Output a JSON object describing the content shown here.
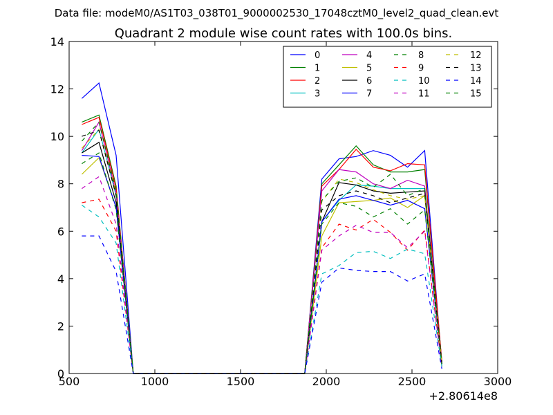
{
  "figure": {
    "suptitle": "Data file: modeM0/AS1T03_038T01_9000002530_17048cztM0_level2_quad_clean.evt",
    "x_offset_label": "+2.80614e8"
  },
  "chart_data": {
    "type": "line",
    "title": "Quadrant 2 module wise count rates with 100.0s bins.",
    "xlabel": "",
    "ylabel": "",
    "xlim": [
      500,
      3000
    ],
    "ylim": [
      0,
      14
    ],
    "x_ticks": [
      "500",
      "1000",
      "1500",
      "2000",
      "2500",
      "3000"
    ],
    "y_ticks": [
      "0",
      "2",
      "4",
      "6",
      "8",
      "10",
      "12",
      "14"
    ],
    "grid": false,
    "legend_position": "top-right",
    "legend_columns": 4,
    "x": [
      574,
      674,
      774,
      874,
      974,
      1074,
      1174,
      1274,
      1374,
      1474,
      1574,
      1674,
      1774,
      1874,
      1974,
      2074,
      2174,
      2274,
      2374,
      2474,
      2574,
      2674
    ],
    "series": [
      {
        "name": "0",
        "color": "#0000ff",
        "dash": false,
        "values": [
          11.6,
          12.25,
          9.2,
          0,
          0,
          0,
          0,
          0,
          0,
          0,
          0,
          0,
          0,
          0,
          8.2,
          9.05,
          9.15,
          9.4,
          9.2,
          8.7,
          9.4,
          0.4
        ]
      },
      {
        "name": "1",
        "color": "#008000",
        "dash": false,
        "values": [
          10.6,
          10.9,
          7.9,
          0,
          0,
          0,
          0,
          0,
          0,
          0,
          0,
          0,
          0,
          0,
          8.0,
          8.8,
          9.6,
          8.8,
          8.5,
          8.5,
          8.6,
          0.5
        ]
      },
      {
        "name": "2",
        "color": "#ff0000",
        "dash": false,
        "values": [
          10.5,
          10.8,
          7.8,
          0,
          0,
          0,
          0,
          0,
          0,
          0,
          0,
          0,
          0,
          0,
          7.9,
          8.6,
          9.45,
          8.7,
          8.55,
          8.85,
          8.8,
          0.5
        ]
      },
      {
        "name": "3",
        "color": "#00bfbf",
        "dash": false,
        "values": [
          9.3,
          10.3,
          7.5,
          0,
          0,
          0,
          0,
          0,
          0,
          0,
          0,
          0,
          0,
          0,
          6.4,
          7.3,
          7.95,
          7.9,
          7.8,
          7.8,
          7.8,
          0.4
        ]
      },
      {
        "name": "4",
        "color": "#bf00bf",
        "dash": false,
        "values": [
          9.4,
          10.6,
          7.6,
          0,
          0,
          0,
          0,
          0,
          0,
          0,
          0,
          0,
          0,
          0,
          7.7,
          8.6,
          8.5,
          8.0,
          7.8,
          8.15,
          7.9,
          0.4
        ]
      },
      {
        "name": "5",
        "color": "#bfbf00",
        "dash": false,
        "values": [
          8.4,
          9.1,
          7.0,
          0,
          0,
          0,
          0,
          0,
          0,
          0,
          0,
          0,
          0,
          0,
          5.8,
          7.2,
          7.25,
          7.3,
          7.4,
          7.0,
          7.5,
          0.4
        ]
      },
      {
        "name": "6",
        "color": "#000000",
        "dash": false,
        "values": [
          9.3,
          9.75,
          7.2,
          0,
          0,
          0,
          0,
          0,
          0,
          0,
          0,
          0,
          0,
          0,
          6.4,
          8.05,
          7.95,
          7.7,
          7.6,
          7.65,
          7.7,
          0.4
        ]
      },
      {
        "name": "7",
        "color": "#0000ff",
        "dash": false,
        "values": [
          9.2,
          9.15,
          7.0,
          0,
          0,
          0,
          0,
          0,
          0,
          0,
          0,
          0,
          0,
          0,
          6.4,
          7.35,
          7.5,
          7.3,
          7.1,
          7.3,
          6.95,
          0.4
        ]
      },
      {
        "name": "8",
        "color": "#008000",
        "dash": true,
        "values": [
          8.85,
          9.3,
          6.9,
          0,
          0,
          0,
          0,
          0,
          0,
          0,
          0,
          0,
          0,
          0,
          6.3,
          7.2,
          7.05,
          6.6,
          6.95,
          6.3,
          6.9,
          0.4
        ]
      },
      {
        "name": "9",
        "color": "#ff0000",
        "dash": true,
        "values": [
          7.2,
          7.35,
          6.0,
          0,
          0,
          0,
          0,
          0,
          0,
          0,
          0,
          0,
          0,
          0,
          5.3,
          6.3,
          6.05,
          6.5,
          5.95,
          5.2,
          6.05,
          0.3
        ]
      },
      {
        "name": "10",
        "color": "#00bfbf",
        "dash": true,
        "values": [
          7.1,
          6.6,
          5.5,
          0,
          0,
          0,
          0,
          0,
          0,
          0,
          0,
          0,
          0,
          0,
          4.2,
          4.55,
          5.1,
          5.15,
          4.85,
          5.25,
          5.05,
          0.3
        ]
      },
      {
        "name": "11",
        "color": "#bf00bf",
        "dash": true,
        "values": [
          7.8,
          8.3,
          6.3,
          0,
          0,
          0,
          0,
          0,
          0,
          0,
          0,
          0,
          0,
          0,
          5.2,
          5.8,
          6.25,
          5.95,
          5.95,
          5.3,
          6.0,
          0.3
        ]
      },
      {
        "name": "12",
        "color": "#bfbf00",
        "dash": true,
        "values": [
          9.5,
          10.3,
          7.6,
          0,
          0,
          0,
          0,
          0,
          0,
          0,
          0,
          0,
          0,
          0,
          7.25,
          8.2,
          8.05,
          7.75,
          7.5,
          7.35,
          7.5,
          0.4
        ]
      },
      {
        "name": "13",
        "color": "#000000",
        "dash": true,
        "values": [
          10.0,
          10.25,
          7.5,
          0,
          0,
          0,
          0,
          0,
          0,
          0,
          0,
          0,
          0,
          0,
          6.9,
          7.5,
          7.7,
          7.5,
          7.2,
          7.4,
          7.6,
          0.4
        ]
      },
      {
        "name": "14",
        "color": "#0000ff",
        "dash": true,
        "values": [
          5.8,
          5.8,
          4.3,
          0,
          0,
          0,
          0,
          0,
          0,
          0,
          0,
          0,
          0,
          0,
          3.85,
          4.45,
          4.35,
          4.3,
          4.3,
          3.9,
          4.2,
          0.2
        ]
      },
      {
        "name": "15",
        "color": "#008000",
        "dash": true,
        "values": [
          9.8,
          10.6,
          7.7,
          0,
          0,
          0,
          0,
          0,
          0,
          0,
          0,
          0,
          0,
          0,
          7.3,
          8.1,
          8.25,
          7.85,
          8.4,
          7.5,
          7.8,
          0.4
        ]
      }
    ]
  }
}
